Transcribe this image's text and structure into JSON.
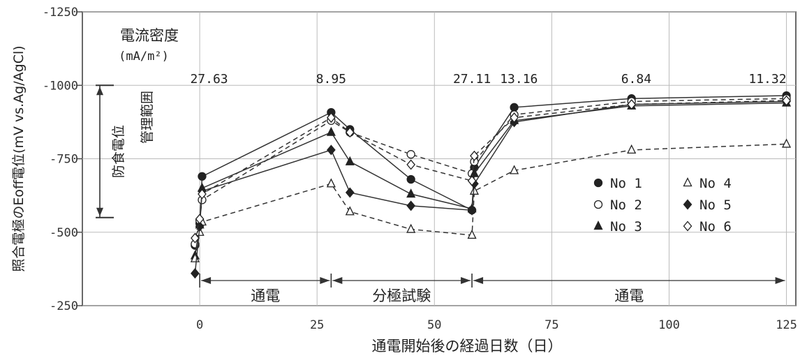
{
  "chart_data": {
    "type": "line",
    "xlabel": "通電開始後の経過日数（日）",
    "ylabel": "照合電極のEoff電位(mV vs.Ag/AgCl)",
    "xlim": [
      -25,
      127
    ],
    "ylim": [
      -250,
      -1250
    ],
    "x_ticks": [
      0,
      25,
      50,
      75,
      100,
      125
    ],
    "y_ticks": [
      -250,
      -500,
      -750,
      -1000,
      -1250
    ],
    "grid": true,
    "legend_position": "right",
    "current_density_title": "電流密度",
    "current_density_unit": "(mA/m²)",
    "current_density_labels": [
      {
        "x": 2,
        "text": "27.63"
      },
      {
        "x": 28,
        "text": "8.95"
      },
      {
        "x": 58,
        "text": "27.11"
      },
      {
        "x": 68,
        "text": "13.16"
      },
      {
        "x": 93,
        "text": "6.84"
      },
      {
        "x": 125,
        "text": "11.32"
      }
    ],
    "protection_range": {
      "y_from": -550,
      "y_to": -1000,
      "label_a": "防食電位",
      "label_b": "管理範囲"
    },
    "periods": [
      {
        "x_from": 0,
        "x_to": 28,
        "label": "通電"
      },
      {
        "x_from": 28,
        "x_to": 58,
        "label": "分極試験"
      },
      {
        "x_from": 58,
        "x_to": 125,
        "label": "通電"
      }
    ],
    "series": [
      {
        "name": "No 1",
        "marker": "filled-circle",
        "dash": "solid",
        "x": [
          -1,
          0,
          0.5,
          28,
          32,
          45,
          58,
          58.5,
          67,
          92,
          125
        ],
        "y": [
          -455,
          -530,
          -690,
          -908,
          -850,
          -680,
          -575,
          -720,
          -925,
          -955,
          -965
        ]
      },
      {
        "name": "No 2",
        "marker": "open-circle",
        "dash": "dashed",
        "x": [
          -1,
          0,
          0.5,
          28,
          32,
          45,
          58,
          58.5,
          67,
          92,
          125
        ],
        "y": [
          -460,
          -540,
          -610,
          -880,
          -840,
          -765,
          -700,
          -740,
          -900,
          -945,
          -955
        ]
      },
      {
        "name": "No 3",
        "marker": "filled-triangle",
        "dash": "solid",
        "x": [
          -1,
          0,
          0.5,
          28,
          32,
          45,
          58,
          58.5,
          67,
          92,
          125
        ],
        "y": [
          -420,
          -525,
          -650,
          -840,
          -740,
          -630,
          -580,
          -700,
          -880,
          -930,
          -940
        ]
      },
      {
        "name": "No 4",
        "marker": "open-triangle",
        "dash": "dashed",
        "x": [
          -1,
          0,
          0.5,
          28,
          32,
          45,
          58,
          58.5,
          67,
          92,
          125
        ],
        "y": [
          -410,
          -500,
          -535,
          -665,
          -570,
          -510,
          -490,
          -640,
          -710,
          -780,
          -800
        ]
      },
      {
        "name": "No 5",
        "marker": "filled-diamond",
        "dash": "solid",
        "x": [
          -1,
          0,
          0.5,
          28,
          32,
          45,
          58,
          58.5,
          67,
          92,
          125
        ],
        "y": [
          -360,
          -520,
          -640,
          -780,
          -635,
          -590,
          -575,
          -665,
          -875,
          -935,
          -945
        ]
      },
      {
        "name": "No 6",
        "marker": "open-diamond",
        "dash": "dashed",
        "x": [
          -1,
          0,
          0.5,
          28,
          32,
          45,
          58,
          58.5,
          67,
          92,
          125
        ],
        "y": [
          -480,
          -545,
          -630,
          -890,
          -840,
          -730,
          -675,
          -760,
          -890,
          -935,
          -948
        ]
      }
    ]
  }
}
